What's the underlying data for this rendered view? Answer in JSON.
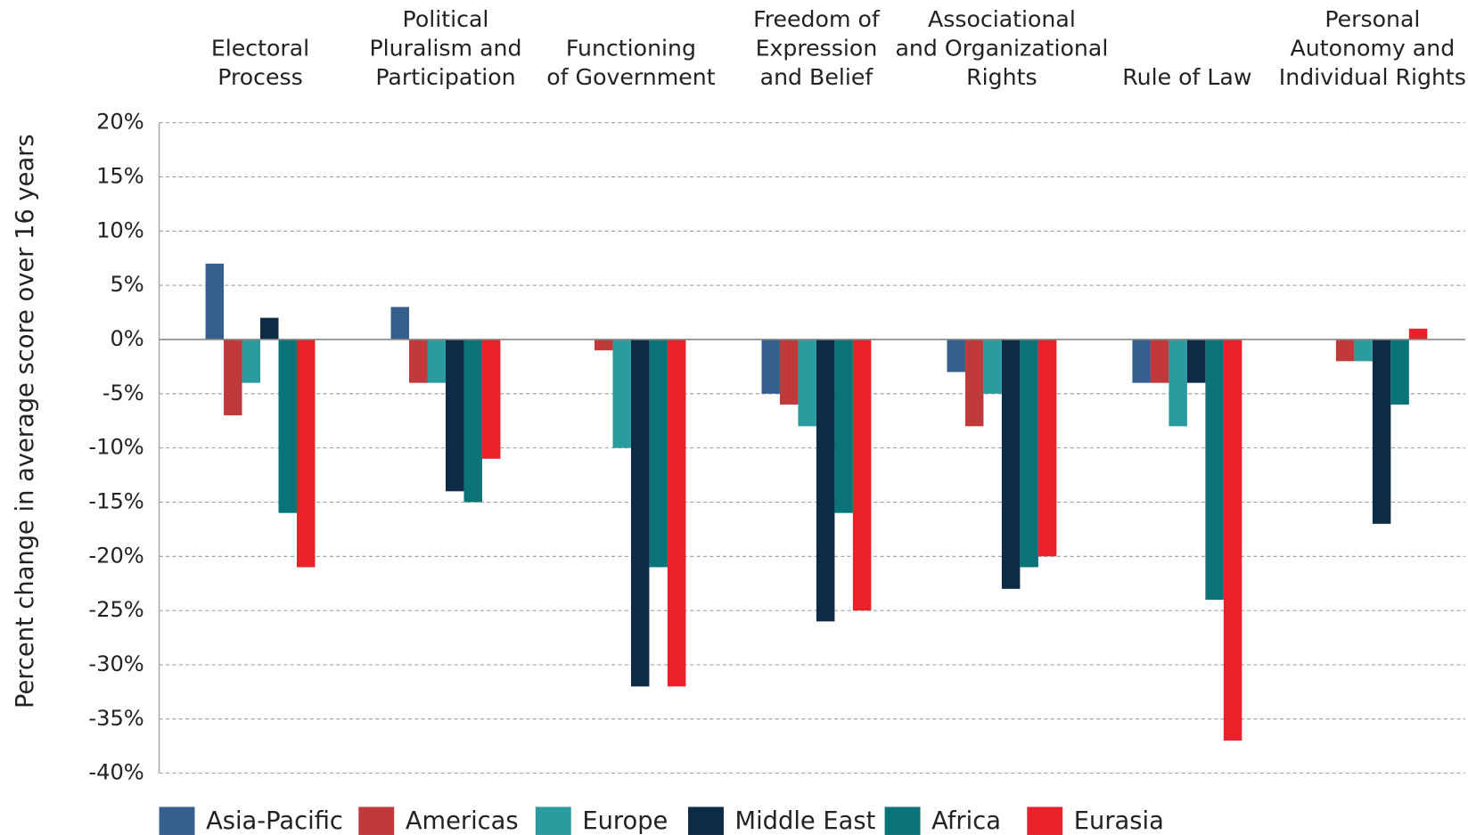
{
  "chart_data": {
    "type": "bar",
    "y_label": "Percent change in average score over 16 years",
    "categories": [
      "Electoral\nProcess",
      "Political\nPluralism and\nParticipation",
      "Functioning\nof Government",
      "Freedom of\nExpression\nand Belief",
      "Associational\nand Organizational\nRights",
      "Rule of Law",
      "Personal\nAutonomy and\nIndividual Rights"
    ],
    "series": [
      {
        "name": "Asia-Pacific",
        "color": "#365f8e",
        "values": [
          7,
          3,
          0,
          -5,
          -3,
          -4,
          0
        ]
      },
      {
        "name": "Americas",
        "color": "#c0393b",
        "values": [
          -7,
          -4,
          -1,
          -6,
          -8,
          -4,
          -2
        ]
      },
      {
        "name": "Europe",
        "color": "#2a9ca0",
        "values": [
          -4,
          -4,
          -10,
          -8,
          -5,
          -8,
          -2
        ]
      },
      {
        "name": "Middle East",
        "color": "#0d2b45",
        "values": [
          2,
          -14,
          -32,
          -26,
          -23,
          -4,
          -17
        ]
      },
      {
        "name": "Africa",
        "color": "#0b7478",
        "values": [
          -16,
          -15,
          -21,
          -16,
          -21,
          -24,
          -6
        ]
      },
      {
        "name": "Eurasia",
        "color": "#e8212b",
        "values": [
          -21,
          -11,
          -32,
          -25,
          -20,
          -37,
          1
        ]
      }
    ],
    "ylim": [
      -40,
      20
    ],
    "yticks": [
      {
        "value": -40,
        "label": "-40%"
      },
      {
        "value": -35,
        "label": "-35%"
      },
      {
        "value": -30,
        "label": "-30%"
      },
      {
        "value": -25,
        "label": "-25%"
      },
      {
        "value": -20,
        "label": "-20%"
      },
      {
        "value": -15,
        "label": "-15%"
      },
      {
        "value": -10,
        "label": "-10%"
      },
      {
        "value": -5,
        "label": "-5%"
      },
      {
        "value": 0,
        "label": "0%"
      },
      {
        "value": 5,
        "label": "5%"
      },
      {
        "value": 10,
        "label": "10%"
      },
      {
        "value": 15,
        "label": "15%"
      },
      {
        "value": 20,
        "label": "20%"
      }
    ],
    "grid": true,
    "legend": "bottom"
  }
}
